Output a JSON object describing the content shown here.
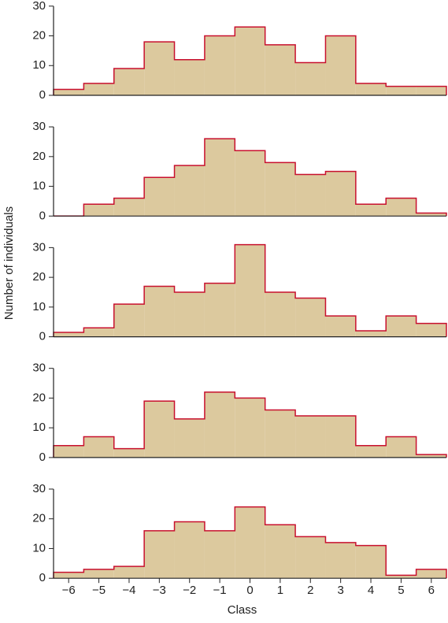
{
  "chart_data": [
    {
      "type": "histogram",
      "bins": [
        -6.5,
        -5.5,
        -4.5,
        -3.5,
        -2.5,
        -1.5,
        -0.5,
        0.5,
        1.5,
        2.5,
        3.5,
        4.5,
        5.5,
        6.5
      ],
      "values": [
        2,
        4,
        9,
        18,
        12,
        20,
        23,
        17,
        11,
        20,
        4,
        3,
        3
      ],
      "color": "#dcc99e",
      "edge_color": "#c8102e",
      "xlim": [
        -6.5,
        6.5
      ],
      "ylim": [
        0,
        31
      ],
      "yticks": [
        0,
        10,
        20,
        30
      ]
    },
    {
      "type": "histogram",
      "bins": [
        -6.5,
        -5.5,
        -4.5,
        -3.5,
        -2.5,
        -1.5,
        -0.5,
        0.5,
        1.5,
        2.5,
        3.5,
        4.5,
        5.5,
        6.5
      ],
      "values": [
        0,
        4,
        6,
        13,
        17,
        26,
        22,
        18,
        14,
        15,
        4,
        6,
        1
      ],
      "color": "#dcc99e",
      "edge_color": "#c8102e",
      "xlim": [
        -6.5,
        6.5
      ],
      "ylim": [
        0,
        31
      ],
      "yticks": [
        0,
        10,
        20,
        30
      ]
    },
    {
      "type": "histogram",
      "bins": [
        -6.5,
        -5.5,
        -4.5,
        -3.5,
        -2.5,
        -1.5,
        -0.5,
        0.5,
        1.5,
        2.5,
        3.5,
        4.5,
        5.5,
        6.5
      ],
      "values": [
        1.5,
        3,
        11,
        17,
        15,
        18,
        31,
        15,
        13,
        7,
        2,
        7,
        4.5
      ],
      "color": "#dcc99e",
      "edge_color": "#c8102e",
      "xlim": [
        -6.5,
        6.5
      ],
      "ylim": [
        0,
        31
      ],
      "yticks": [
        0,
        10,
        20,
        30
      ],
      "ylabel": "Number of individuals"
    },
    {
      "type": "histogram",
      "bins": [
        -6.5,
        -5.5,
        -4.5,
        -3.5,
        -2.5,
        -1.5,
        -0.5,
        0.5,
        1.5,
        2.5,
        3.5,
        4.5,
        5.5,
        6.5
      ],
      "values": [
        4,
        7,
        3,
        19,
        13,
        22,
        20,
        16,
        14,
        14,
        4,
        7,
        1
      ],
      "color": "#dcc99e",
      "edge_color": "#c8102e",
      "xlim": [
        -6.5,
        6.5
      ],
      "ylim": [
        0,
        31
      ],
      "yticks": [
        0,
        10,
        20,
        30
      ]
    },
    {
      "type": "histogram",
      "bins": [
        -6.5,
        -5.5,
        -4.5,
        -3.5,
        -2.5,
        -1.5,
        -0.5,
        0.5,
        1.5,
        2.5,
        3.5,
        4.5,
        5.5,
        6.5
      ],
      "values": [
        2,
        3,
        4,
        16,
        19,
        16,
        24,
        18,
        14,
        12,
        11,
        1,
        3
      ],
      "color": "#dcc99e",
      "edge_color": "#c8102e",
      "xlim": [
        -6.5,
        6.5
      ],
      "ylim": [
        0,
        31
      ],
      "yticks": [
        0,
        10,
        20,
        30
      ],
      "xlabel": "Class",
      "xticks": [
        {
          "value": -6,
          "label": "−6"
        },
        {
          "value": -5,
          "label": "−5"
        },
        {
          "value": -4,
          "label": "−4"
        },
        {
          "value": -3,
          "label": "−3"
        },
        {
          "value": -2,
          "label": "−2"
        },
        {
          "value": -1,
          "label": "−1"
        },
        0,
        1,
        2,
        3,
        4,
        5,
        6
      ]
    }
  ]
}
